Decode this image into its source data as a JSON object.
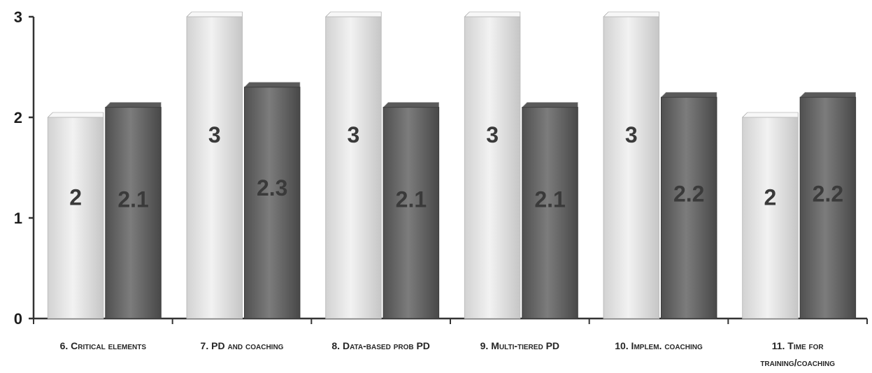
{
  "chart_data": {
    "type": "bar",
    "title": "",
    "xlabel": "",
    "ylabel": "",
    "ylim": [
      0,
      3
    ],
    "yticks": [
      "0",
      "1",
      "2",
      "3"
    ],
    "grid": false,
    "legend": "none",
    "categories": [
      [
        "6. Critical elements"
      ],
      [
        "7. PD and coaching"
      ],
      [
        "8. Data-based prob PD"
      ],
      [
        "9.  Multi-tiered PD"
      ],
      [
        "10. Implem. coaching"
      ],
      [
        "11. Time for",
        "training/coaching"
      ]
    ],
    "series": [
      {
        "values": [
          2,
          3,
          3,
          3,
          3,
          2
        ],
        "labels": [
          "2",
          "3",
          "3",
          "3",
          "3",
          "2"
        ],
        "color": "#e6e6e6"
      },
      {
        "values": [
          2.1,
          2.3,
          2.1,
          2.1,
          2.2,
          2.2
        ],
        "labels": [
          "2.1",
          "2.3",
          "2.1",
          "2.1",
          "2.2",
          "2.2"
        ],
        "color": "#6e6e6e"
      }
    ]
  }
}
